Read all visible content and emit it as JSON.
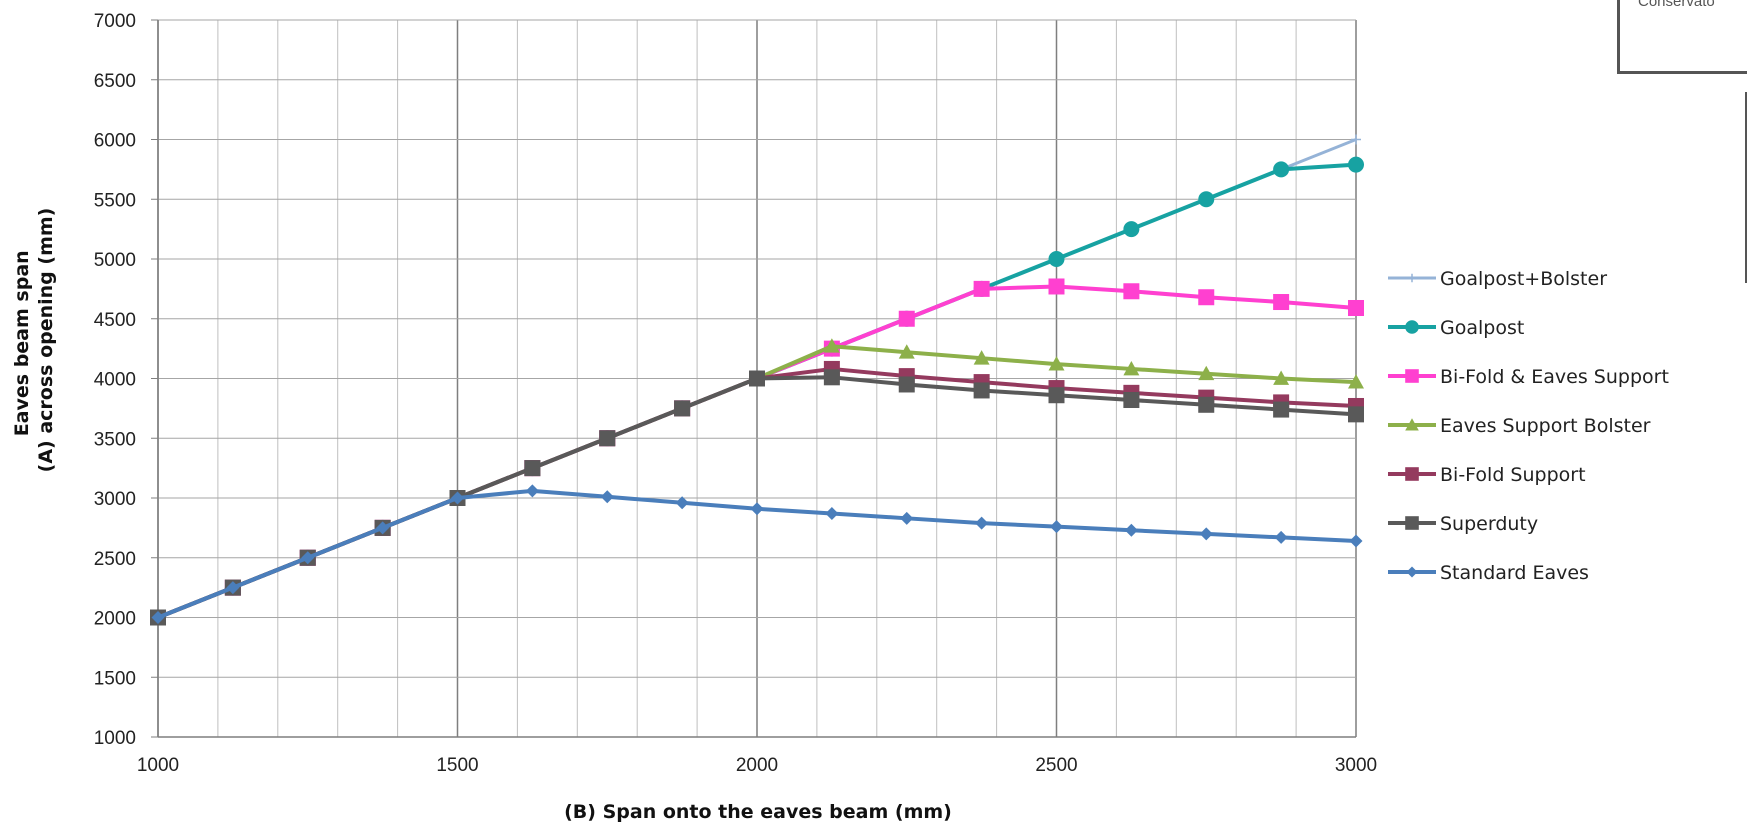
{
  "chart_data": {
    "type": "line",
    "title": "",
    "xlabel": "(B) Span onto the eaves beam (mm)",
    "ylabel_lines": [
      "Eaves beam span",
      "(A) across opening (mm)"
    ],
    "xlim": [
      1000,
      3000
    ],
    "ylim": [
      1000,
      7000
    ],
    "x_ticks": [
      1000,
      1500,
      2000,
      2500,
      3000
    ],
    "y_ticks": [
      1000,
      1500,
      2000,
      2500,
      3000,
      3500,
      4000,
      4500,
      5000,
      5500,
      6000,
      6500,
      7000
    ],
    "grid": true,
    "legend_position": "right",
    "x": [
      1000,
      1125,
      1250,
      1375,
      1500,
      1625,
      1750,
      1875,
      2000,
      2125,
      2250,
      2375,
      2500,
      2625,
      2750,
      2875,
      3000
    ],
    "series": [
      {
        "name": "Goalpost+Bolster",
        "color": "#95b3d7",
        "marker": "plus",
        "values": [
          2000,
          2250,
          2500,
          2750,
          3000,
          3250,
          3500,
          3750,
          4000,
          4250,
          4500,
          4750,
          5000,
          5250,
          5500,
          5750,
          6000
        ]
      },
      {
        "name": "Goalpost",
        "color": "#17a2a2",
        "marker": "circle",
        "values": [
          2000,
          2250,
          2500,
          2750,
          3000,
          3250,
          3500,
          3750,
          4000,
          4250,
          4500,
          4750,
          5000,
          5250,
          5500,
          5750,
          5790
        ]
      },
      {
        "name": "Bi-Fold & Eaves Support",
        "color": "#ff40d0",
        "marker": "square",
        "values": [
          2000,
          2250,
          2500,
          2750,
          3000,
          3250,
          3500,
          3750,
          4000,
          4250,
          4500,
          4750,
          4770,
          4730,
          4680,
          4640,
          4590
        ]
      },
      {
        "name": "Eaves Support Bolster",
        "color": "#8db04a",
        "marker": "triangle",
        "values": [
          2000,
          2250,
          2500,
          2750,
          3000,
          3250,
          3500,
          3750,
          4000,
          4270,
          4220,
          4170,
          4120,
          4080,
          4040,
          4000,
          3970
        ]
      },
      {
        "name": "Bi-Fold Support",
        "color": "#943a5e",
        "marker": "square",
        "values": [
          2000,
          2250,
          2500,
          2750,
          3000,
          3250,
          3500,
          3750,
          4000,
          4080,
          4020,
          3970,
          3920,
          3880,
          3840,
          3800,
          3770
        ]
      },
      {
        "name": "Superduty",
        "color": "#595959",
        "marker": "square",
        "values": [
          2000,
          2250,
          2500,
          2750,
          3000,
          3250,
          3500,
          3750,
          4000,
          4010,
          3950,
          3900,
          3860,
          3820,
          3780,
          3740,
          3700
        ]
      },
      {
        "name": "Standard Eaves",
        "color": "#4a7ebb",
        "marker": "diamond",
        "values": [
          2000,
          2250,
          2500,
          2750,
          3000,
          3060,
          3010,
          2960,
          2910,
          2870,
          2830,
          2790,
          2760,
          2730,
          2700,
          2670,
          2640
        ]
      }
    ]
  },
  "side_box": {
    "text": "Conservato"
  }
}
